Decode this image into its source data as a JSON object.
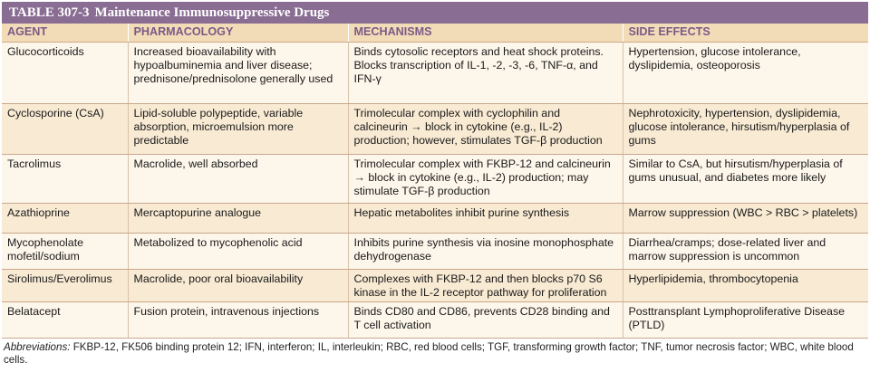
{
  "table": {
    "number": "TABLE 307-3",
    "title": "Maintenance Immunosuppressive Drugs",
    "headers": [
      "AGENT",
      "PHARMACOLOGY",
      "MECHANISMS",
      "SIDE EFFECTS"
    ],
    "rows": [
      {
        "agent": "Glucocorticoids",
        "pharmacology": "Increased bioavailability with hypoalbuminemia and liver disease; prednisone/prednisolone generally used",
        "mechanisms": "Binds cytosolic receptors and heat shock proteins. Blocks transcription of IL-1, -2, -3, -6, TNF-α, and IFN-γ",
        "side_effects": "Hypertension, glucose intolerance, dyslipidemia, osteoporosis"
      },
      {
        "agent": "Cyclosporine (CsA)",
        "pharmacology": "Lipid-soluble polypeptide, variable absorption, microemulsion more predictable",
        "mechanisms": "Trimolecular complex with cyclophilin and calcineurin → block in cytokine (e.g., IL-2) production; however, stimulates TGF-β production",
        "side_effects": "Nephrotoxicity, hypertension, dyslipidemia, glucose intolerance, hirsutism/hyperplasia of gums"
      },
      {
        "agent": "Tacrolimus",
        "pharmacology": "Macrolide, well absorbed",
        "mechanisms": "Trimolecular complex with FKBP-12 and calcineurin → block in cytokine (e.g., IL-2) production; may stimulate TGF-β production",
        "side_effects": "Similar to CsA, but hirsutism/hyperplasia of gums unusual, and diabetes more likely"
      },
      {
        "agent": "Azathioprine",
        "pharmacology": "Mercaptopurine analogue",
        "mechanisms": "Hepatic metabolites inhibit purine synthesis",
        "side_effects": "Marrow suppression (WBC > RBC > platelets)"
      },
      {
        "agent": "Mycophenolate mofetil/sodium",
        "pharmacology": "Metabolized to mycophenolic acid",
        "mechanisms": "Inhibits purine synthesis via inosine monophosphate dehydrogenase",
        "side_effects": "Diarrhea/cramps; dose-related liver and marrow suppression is uncommon"
      },
      {
        "agent": "Sirolimus/Everolimus",
        "pharmacology": "Macrolide, poor oral bioavailability",
        "mechanisms": "Complexes with FKBP-12 and then blocks p70 S6 kinase in the IL-2 receptor pathway for proliferation",
        "side_effects": "Hyperlipidemia, thrombocytopenia"
      },
      {
        "agent": "Belatacept",
        "pharmacology": "Fusion protein, intravenous injections",
        "mechanisms": "Binds CD80 and CD86, prevents CD28 binding and T cell activation",
        "side_effects": "Posttransplant Lymphoproliferative Disease (PTLD)"
      }
    ]
  },
  "footnote": {
    "label": "Abbreviations:",
    "text": "FKBP-12, FK506 binding protein 12; IFN, interferon; IL, interleukin; RBC, red blood cells; TGF, transforming growth factor; TNF, tumor necrosis factor; WBC, white blood cells."
  },
  "colors": {
    "title_bg": "#8a6d92",
    "header_bg": "#f2dcb8",
    "header_text": "#7a5a86",
    "row_light": "#fdf6ea",
    "row_dark": "#f8ead3"
  }
}
